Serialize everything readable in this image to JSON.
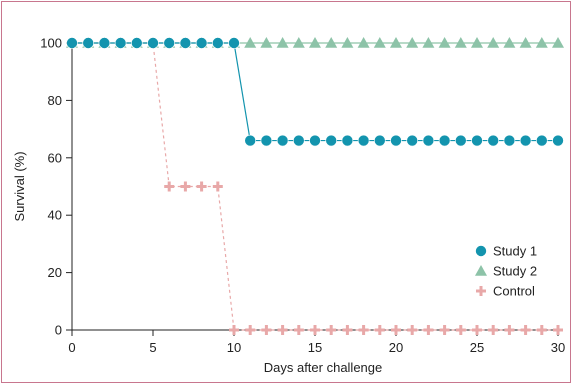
{
  "chart_data": {
    "type": "line",
    "title": "",
    "xlabel": "Days after challenge",
    "ylabel": "Survival (%)",
    "xlim": [
      0,
      30
    ],
    "ylim": [
      0,
      100
    ],
    "xticks": [
      0,
      5,
      10,
      15,
      20,
      25,
      30
    ],
    "yticks": [
      0,
      20,
      40,
      60,
      80,
      100
    ],
    "grid": false,
    "legend_position": "bottom-right",
    "series": [
      {
        "name": "Study 1",
        "color": "#1394ae",
        "marker": "circle",
        "line_style": "solid",
        "x": [
          0,
          1,
          2,
          3,
          4,
          5,
          6,
          7,
          8,
          9,
          10,
          11,
          12,
          13,
          14,
          15,
          16,
          17,
          18,
          19,
          20,
          21,
          22,
          23,
          24,
          25,
          26,
          27,
          28,
          29,
          30
        ],
        "y": [
          100,
          100,
          100,
          100,
          100,
          100,
          100,
          100,
          100,
          100,
          100,
          66,
          66,
          66,
          66,
          66,
          66,
          66,
          66,
          66,
          66,
          66,
          66,
          66,
          66,
          66,
          66,
          66,
          66,
          66,
          66
        ]
      },
      {
        "name": "Study 2",
        "color": "#8dc3a8",
        "marker": "triangle",
        "line_style": "solid",
        "x": [
          0,
          1,
          2,
          3,
          4,
          5,
          6,
          7,
          8,
          9,
          10,
          11,
          12,
          13,
          14,
          15,
          16,
          17,
          18,
          19,
          20,
          21,
          22,
          23,
          24,
          25,
          26,
          27,
          28,
          29,
          30
        ],
        "y": [
          100,
          100,
          100,
          100,
          100,
          100,
          100,
          100,
          100,
          100,
          100,
          100,
          100,
          100,
          100,
          100,
          100,
          100,
          100,
          100,
          100,
          100,
          100,
          100,
          100,
          100,
          100,
          100,
          100,
          100,
          100
        ]
      },
      {
        "name": "Control",
        "color": "#e8a8a8",
        "marker": "plus",
        "line_style": "dashed",
        "x": [
          0,
          1,
          2,
          3,
          4,
          5,
          6,
          7,
          8,
          9,
          10,
          11,
          12,
          13,
          14,
          15,
          16,
          17,
          18,
          19,
          20,
          21,
          22,
          23,
          24,
          25,
          26,
          27,
          28,
          29,
          30
        ],
        "y": [
          100,
          100,
          100,
          100,
          100,
          100,
          50,
          50,
          50,
          50,
          0,
          0,
          0,
          0,
          0,
          0,
          0,
          0,
          0,
          0,
          0,
          0,
          0,
          0,
          0,
          0,
          0,
          0,
          0,
          0,
          0
        ]
      }
    ]
  }
}
